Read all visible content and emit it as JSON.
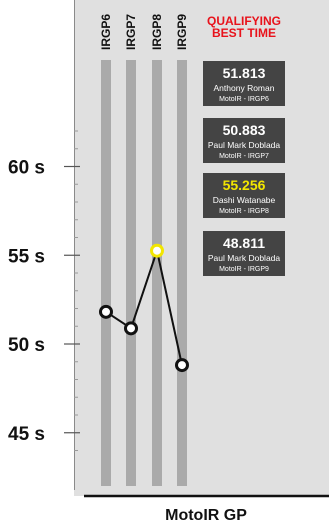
{
  "chart_data": {
    "type": "line",
    "title": "QUALIFYING BEST TIME",
    "title_color": "#e8121b",
    "footer": "MotoIR GP",
    "categories": [
      "IRGP6",
      "IRGP7",
      "IRGP8",
      "IRGP9"
    ],
    "series": [
      {
        "values": [
          51.813,
          50.883,
          55.256,
          48.811
        ]
      }
    ],
    "highlight_index": 2,
    "highlight_color": "#f2e600",
    "y_ticks": [
      {
        "value": 60,
        "label": "60 s"
      },
      {
        "value": 55,
        "label": "55 s"
      },
      {
        "value": 50,
        "label": "50 s"
      },
      {
        "value": 45,
        "label": "45 s"
      }
    ],
    "ylim": [
      42,
      66
    ],
    "grid": false,
    "annotations": [
      {
        "time": "51.813",
        "rider": "Anthony Roman",
        "session": "MotoIR - IRGP6",
        "highlight": false
      },
      {
        "time": "50.883",
        "rider": "Paul Mark Doblada",
        "session": "MotoIR - IRGP7",
        "highlight": false
      },
      {
        "time": "55.256",
        "rider": "Dashi Watanabe",
        "session": "MotoIR - IRGP8",
        "highlight": true
      },
      {
        "time": "48.811",
        "rider": "Paul Mark Doblada",
        "session": "MotoIR - IRGP9",
        "highlight": false
      }
    ],
    "colors": {
      "panel": "#e0e0e0",
      "bar": "#aaaaaa",
      "box": "#444444",
      "line": "#111111",
      "text": "#111111"
    }
  }
}
